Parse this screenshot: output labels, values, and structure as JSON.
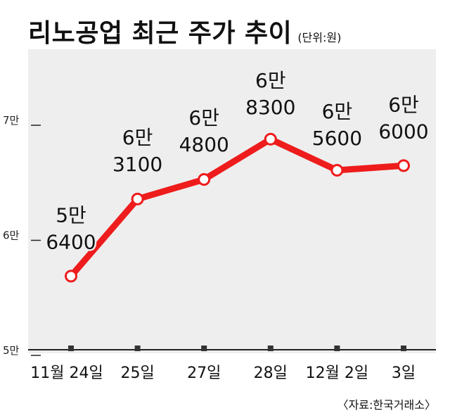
{
  "title": "리노공업 최근 주가 추이",
  "unit": "(단위:원)",
  "source": "〈자료:한국거래소〉",
  "colors": {
    "line": "#ee1c1c",
    "panel": "#eeeeee",
    "axis": "#222222"
  },
  "chart_data": {
    "type": "line",
    "title": "리노공업 최근 주가 추이",
    "unit": "(단위:원)",
    "x": [
      "11월 24일",
      "25일",
      "27일",
      "28일",
      "12월 2일",
      "3일"
    ],
    "series": [
      {
        "values": [
          56400,
          63100,
          64800,
          68300,
          65600,
          66000
        ]
      }
    ],
    "data_labels": [
      [
        "5만",
        "6400"
      ],
      [
        "6만",
        "3100"
      ],
      [
        "6만",
        "4800"
      ],
      [
        "6만",
        "8300"
      ],
      [
        "6만",
        "5600"
      ],
      [
        "6만",
        "6000"
      ]
    ],
    "y_ticks": [
      {
        "value": 50000,
        "label": "5만"
      },
      {
        "value": 60000,
        "label": "6만"
      },
      {
        "value": 70000,
        "label": "7만"
      }
    ],
    "ylim": [
      50000,
      70000
    ],
    "grid": false,
    "legend": "none"
  }
}
